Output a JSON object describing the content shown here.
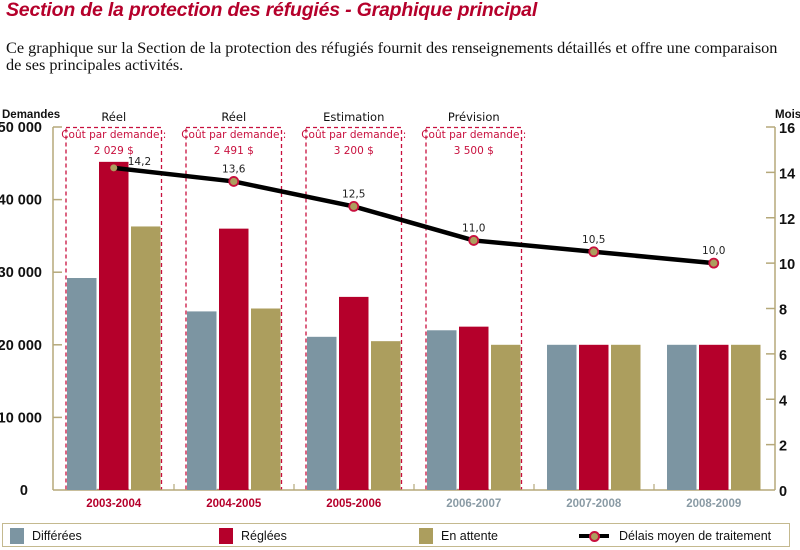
{
  "page": {
    "title": "Section de la protection des réfugiés - Graphique principal",
    "intro": "Ce graphique sur la Section de la protection des réfugiés fournit des renseignements détaillés et offre une comparaison de ses principales activités."
  },
  "colors": {
    "title": "#B5002B",
    "differees": "#7C95A2",
    "reglees": "#B5002B",
    "en_attente": "#AC9E5E",
    "line": "#000000",
    "marker_fill": "#AC9E5E",
    "marker_edge": "#C8103E",
    "axis": "#B5A87A",
    "dashed_box": "#C8103E",
    "year_actual": "#B5002B",
    "year_future": "#8A9BA5"
  },
  "chart_data": {
    "type": "bar",
    "title": "Section de la protection des réfugiés - Graphique principal",
    "categories": [
      "2003-2004",
      "2004-2005",
      "2005-2006",
      "2006-2007",
      "2007-2008",
      "2008-2009"
    ],
    "category_style": [
      "actual",
      "actual",
      "actual",
      "future",
      "future",
      "future"
    ],
    "ylabel": "Demandes",
    "ylim": [
      0,
      50000
    ],
    "yticks": [
      0,
      10000,
      20000,
      30000,
      40000,
      50000
    ],
    "ytick_labels": [
      "0",
      "10 000",
      "20 000",
      "30 000",
      "40 000",
      "50 000"
    ],
    "y2label": "Mois",
    "y2lim": [
      0,
      16
    ],
    "y2ticks": [
      0,
      2,
      4,
      6,
      8,
      10,
      12,
      14,
      16
    ],
    "y2tick_labels": [
      "0",
      "2",
      "4",
      "6",
      "8",
      "10",
      "12",
      "14",
      "16"
    ],
    "grid": false,
    "series": [
      {
        "name": "Différées",
        "type": "bar",
        "axis": "left",
        "values": [
          29200,
          24600,
          21100,
          22000,
          20000,
          20000
        ]
      },
      {
        "name": "Réglées",
        "type": "bar",
        "axis": "left",
        "values": [
          45200,
          36000,
          26600,
          22500,
          20000,
          20000
        ]
      },
      {
        "name": "En attente",
        "type": "bar",
        "axis": "left",
        "values": [
          36300,
          25000,
          20500,
          20000,
          20000,
          20000
        ]
      },
      {
        "name": "Délais moyen de traitement",
        "type": "line",
        "axis": "right",
        "values": [
          14.2,
          13.6,
          12.5,
          11.0,
          10.5,
          10.0
        ],
        "labels": [
          "14,2",
          "13,6",
          "12,5",
          "11,0",
          "10,5",
          "10,0"
        ]
      }
    ],
    "annotations": [
      {
        "category": "2003-2004",
        "period": "Réel",
        "cost_label": "Coût par demande :",
        "cost": "2 029 $"
      },
      {
        "category": "2004-2005",
        "period": "Réel",
        "cost_label": "Coût par demande :",
        "cost": "2 491 $"
      },
      {
        "category": "2005-2006",
        "period": "Estimation",
        "cost_label": "Coût par demande :",
        "cost": "3 200 $"
      },
      {
        "category": "2006-2007",
        "period": "Prévision",
        "cost_label": "Coût par demande :",
        "cost": "3 500 $"
      }
    ],
    "legend": {
      "position": "bottom",
      "items": [
        {
          "label": "Différées",
          "kind": "bar"
        },
        {
          "label": "Réglées",
          "kind": "bar"
        },
        {
          "label": "En attente",
          "kind": "bar"
        },
        {
          "label": "Délais moyen de traitement",
          "kind": "line"
        }
      ]
    }
  }
}
